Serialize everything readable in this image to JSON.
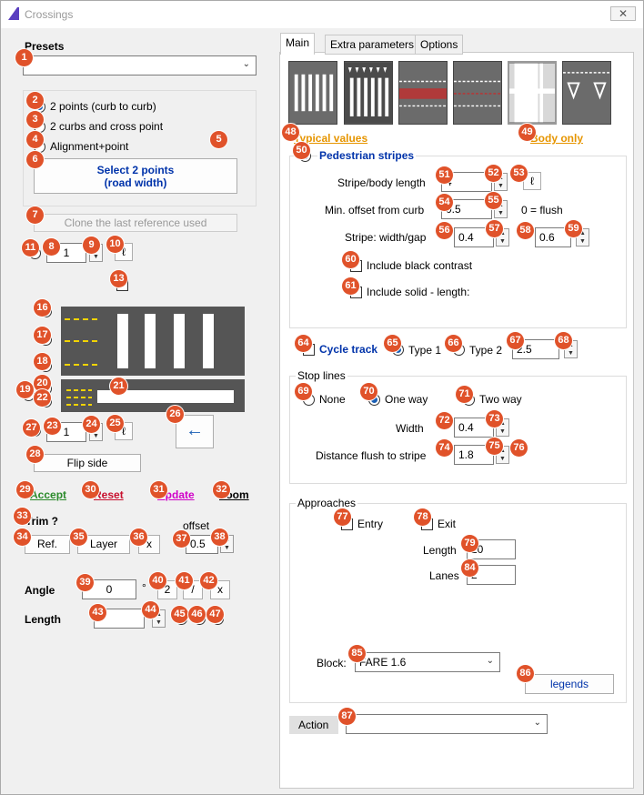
{
  "window": {
    "title": "Crossings",
    "close_label": "✕"
  },
  "presets": {
    "label": "Presets",
    "value": ""
  },
  "mode": {
    "options": [
      "2 points (curb to curb)",
      "2 curbs and cross point",
      "Alignment+point"
    ],
    "selected": 0,
    "select_button_line1": "Select 2 points",
    "select_button_line2": "(road width)"
  },
  "clone_button": "Clone the last reference used",
  "upper_count": "1",
  "upper_sym": "ℓ",
  "lower_count": "1",
  "lower_sym": "ℓ",
  "arrow_label": "←",
  "flip_label": "Flip side",
  "actions": {
    "accept": "Accept",
    "reset": "Reset",
    "update": "Update",
    "zoom": "Zoom"
  },
  "trim": {
    "label": "Trim ?",
    "ref": "Ref.",
    "layer": "Layer",
    "x": "x",
    "offset_label": "offset",
    "offset_value": "0.5"
  },
  "angle": {
    "label": "Angle",
    "value": "0",
    "deg": "°",
    "two": "2",
    "slash": "/",
    "x": "x"
  },
  "length": {
    "label": "Length",
    "value": ""
  },
  "tabs": [
    "Main",
    "Extra parameters",
    "Options"
  ],
  "typical_values": "Typical values",
  "body_only": "Body only",
  "pedestrian": {
    "label": "Pedestrian stripes",
    "stripe_body_label": "Stripe/body length",
    "stripe_body_value": "4",
    "stripe_body_sym": "ℓ",
    "min_offset_label": "Min. offset from curb",
    "min_offset_value": "0.5",
    "flush_note": "0 = flush",
    "width_gap_label": "Stripe: width/gap",
    "width_value": "0.4",
    "gap_value": "0.6",
    "black_contrast": "Include black contrast",
    "solid_length": "Include solid - length:"
  },
  "cycle": {
    "label": "Cycle track",
    "type1": "Type 1",
    "type2": "Type 2",
    "value": "2.5"
  },
  "stop_lines": {
    "title": "Stop lines",
    "none": "None",
    "one_way": "One way",
    "two_way": "Two way",
    "width_label": "Width",
    "width_value": "0.4",
    "distance_label": "Distance flush to stripe",
    "distance_value": "1.8"
  },
  "approaches": {
    "title": "Approaches",
    "entry": "Entry",
    "exit": "Exit",
    "length_label": "Length",
    "length_value": "20",
    "lanes_label": "Lanes",
    "lanes_value": "2"
  },
  "block": {
    "label": "Block:",
    "value": "FARE 1.6"
  },
  "legends": "legends",
  "action": {
    "label": "Action",
    "value": ""
  },
  "markers": [
    "1",
    "2",
    "3",
    "4",
    "5",
    "6",
    "7",
    "8",
    "9",
    "10",
    "11",
    "13",
    "16",
    "17",
    "18",
    "19",
    "20",
    "21",
    "22",
    "23",
    "24",
    "25",
    "26",
    "27",
    "28",
    "29",
    "30",
    "31",
    "32",
    "33",
    "34",
    "35",
    "36",
    "37",
    "38",
    "39",
    "40",
    "41",
    "42",
    "43",
    "44",
    "45",
    "46",
    "47",
    "48",
    "49",
    "50",
    "51",
    "52",
    "53",
    "54",
    "55",
    "56",
    "57",
    "58",
    "59",
    "60",
    "61",
    "64",
    "65",
    "66",
    "67",
    "68",
    "69",
    "70",
    "71",
    "72",
    "73",
    "74",
    "75",
    "76",
    "77",
    "78",
    "79",
    "84",
    "85",
    "86",
    "87"
  ]
}
